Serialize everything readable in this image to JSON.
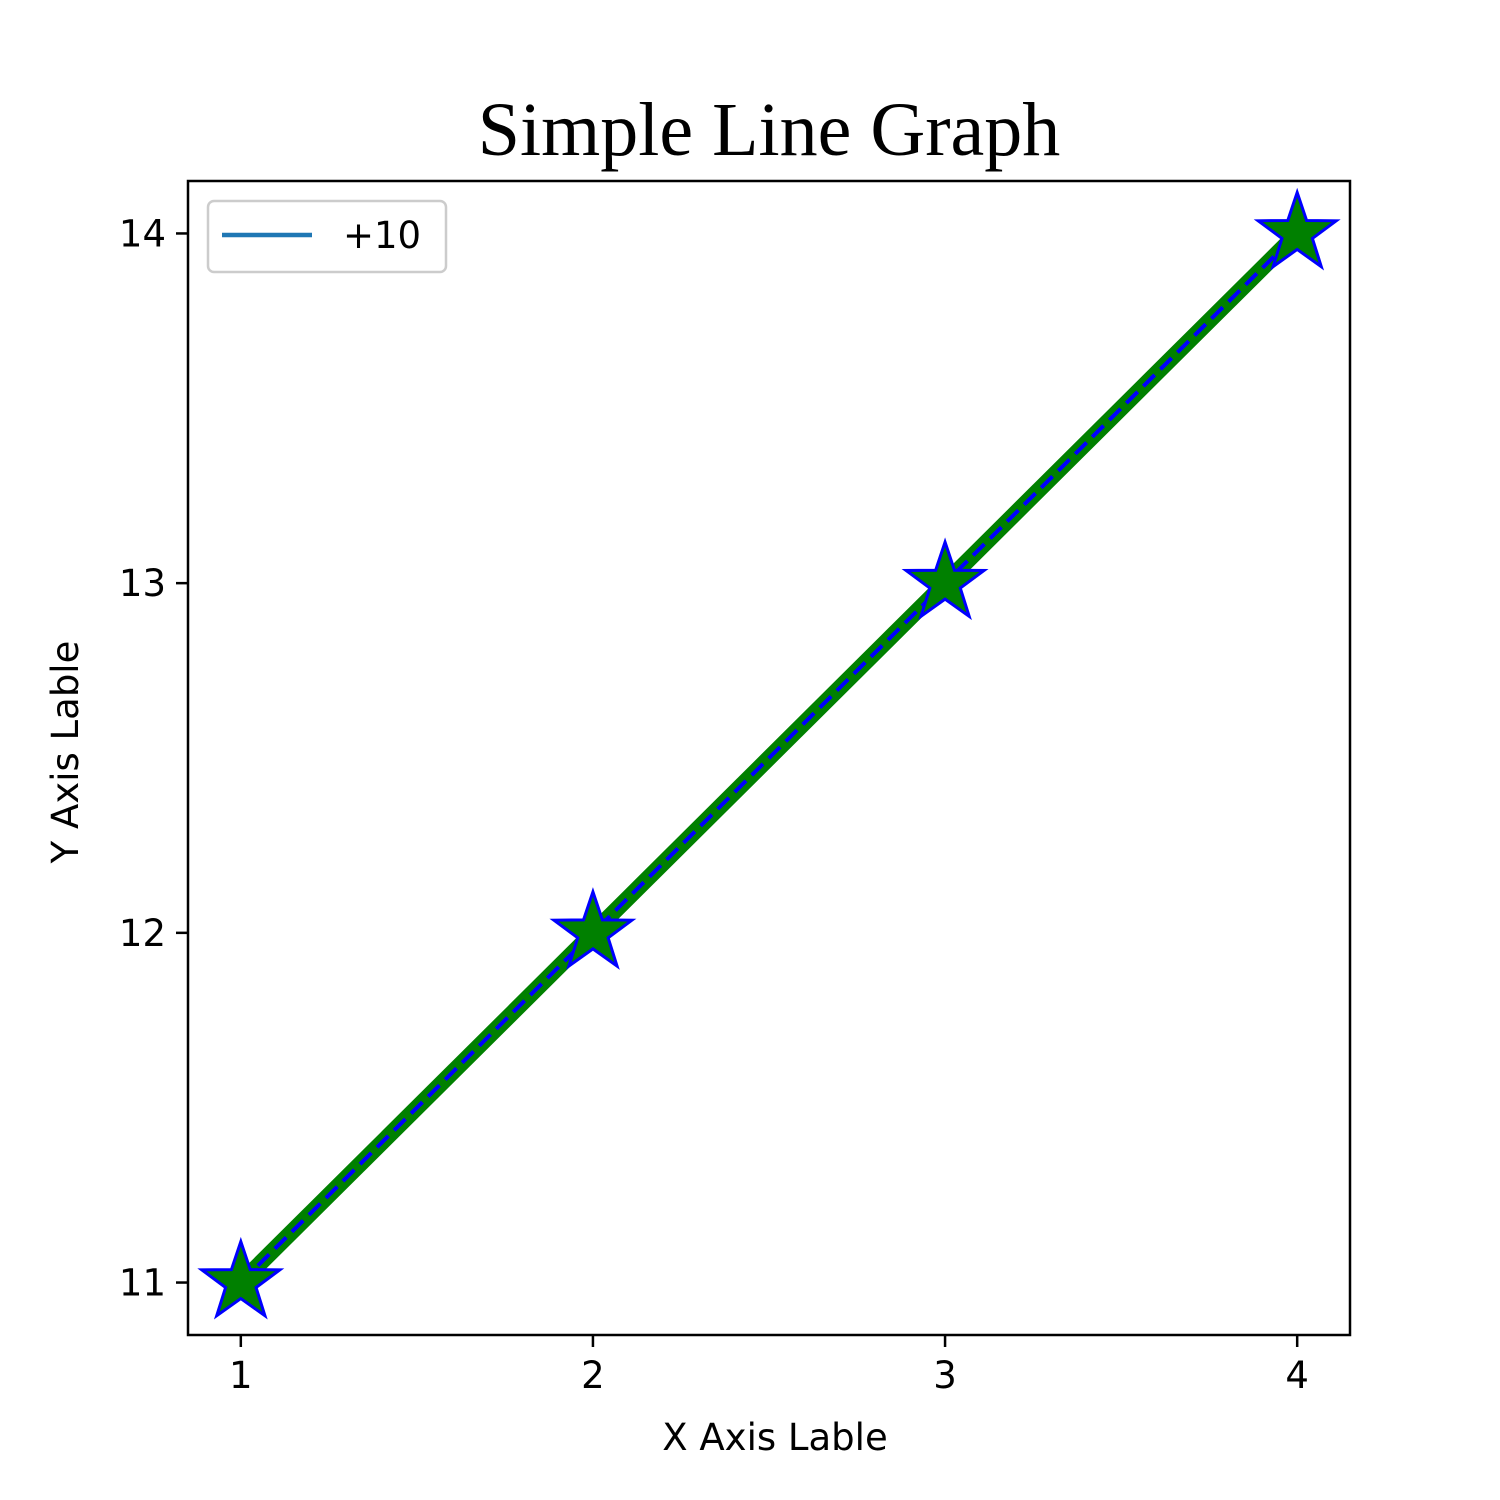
{
  "chart_data": {
    "type": "line",
    "title": "Simple Line Graph",
    "xlabel": "X Axis Lable",
    "ylabel": "Y Axis Lable",
    "x": [
      1,
      2,
      3,
      4
    ],
    "xticks": [
      "1",
      "2",
      "3",
      "4"
    ],
    "yticks": [
      "11",
      "12",
      "13",
      "14"
    ],
    "xlim": [
      0.85,
      4.15
    ],
    "ylim": [
      10.85,
      14.15
    ],
    "grid": false,
    "legend_position": "top-left",
    "series": [
      {
        "name": "+10",
        "values": [
          11,
          12,
          13,
          14
        ],
        "line_color": "#008000",
        "dash_color": "#0000ff",
        "marker": "star",
        "marker_fill": "#008000",
        "marker_edge": "#0000ff",
        "legend_color": "#1f77b4"
      }
    ]
  }
}
